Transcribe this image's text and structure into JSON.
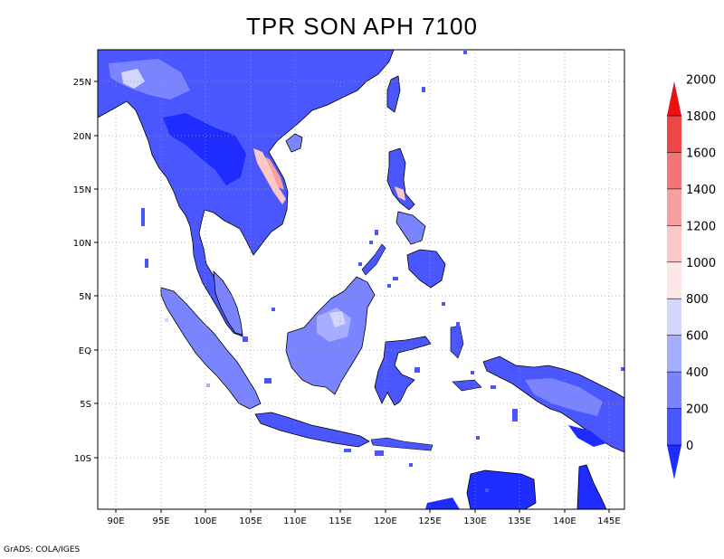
{
  "title": "TPR SON APH 7100",
  "credit": "GrADS: COLA/IGES",
  "lat_labels": [
    "25N",
    "20N",
    "15N",
    "10N",
    "5N",
    "EQ",
    "5S",
    "10S"
  ],
  "lon_labels": [
    "90E",
    "95E",
    "100E",
    "105E",
    "110E",
    "115E",
    "120E",
    "125E",
    "130E",
    "135E",
    "140E",
    "145E"
  ],
  "colorbar": {
    "levels": [
      "0",
      "200",
      "400",
      "600",
      "800",
      "1000",
      "1200",
      "1400",
      "1600",
      "1800",
      "2000"
    ],
    "colors": [
      "#1e2cff",
      "#4a57ff",
      "#7b84ff",
      "#a8aeff",
      "#d3d6ff",
      "#fde7e7",
      "#fbc8c8",
      "#f8a0a0",
      "#f37575",
      "#ee4545",
      "#e81212"
    ]
  },
  "colors": {
    "ocean": "#ffffff",
    "coast": "#000000",
    "grid": "#999999"
  }
}
